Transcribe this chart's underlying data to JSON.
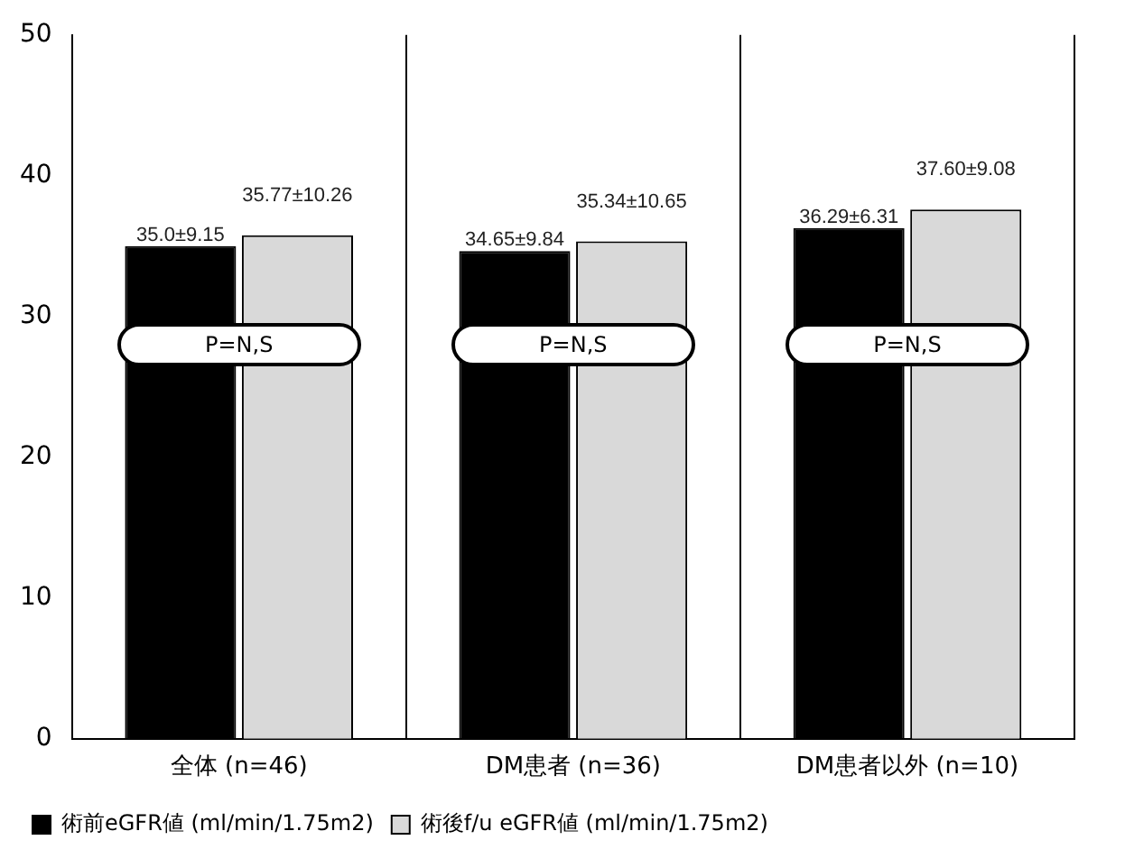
{
  "chart_data": {
    "type": "bar",
    "categories": [
      "全体 (n=46)",
      "DM患者 (n=36)",
      "DM患者以外 (n=10)"
    ],
    "series": [
      {
        "name": "術前eGFR値 (ml/min/1.75m2)",
        "color": "#000000",
        "values": [
          35.0,
          34.65,
          36.29
        ],
        "value_labels": [
          "35.0±9.15",
          "34.65±9.84",
          "36.29±6.31"
        ]
      },
      {
        "name": "術後f/u eGFR値 (ml/min/1.75m2)",
        "color": "#d9d9d9",
        "values": [
          35.77,
          35.34,
          37.6
        ],
        "value_labels": [
          "35.77±10.26",
          "35.34±10.65",
          "37.60±9.08"
        ]
      }
    ],
    "ylim": [
      0,
      50
    ],
    "yticks": [
      0,
      10,
      20,
      30,
      40,
      50
    ],
    "grid": false,
    "legend": "bottom",
    "annotations": [
      {
        "text": "P=N,S",
        "x": "全体 (n=46)",
        "y": 28
      },
      {
        "text": "P=N,S",
        "x": "DM患者 (n=36)",
        "y": 28
      },
      {
        "text": "P=N,S",
        "x": "DM患者以外 (n=10)",
        "y": 28
      }
    ]
  }
}
